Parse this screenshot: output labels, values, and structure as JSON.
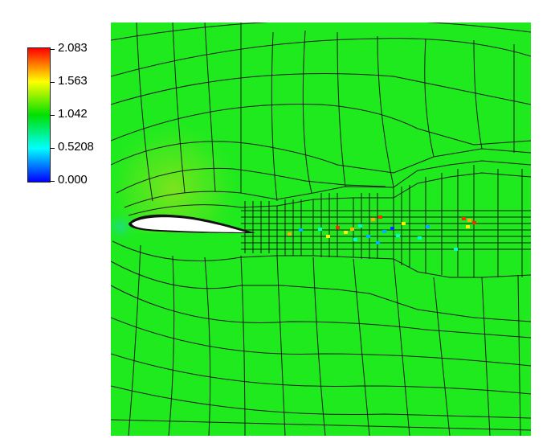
{
  "legend": {
    "ticks": [
      "2.083",
      "1.563",
      "1.042",
      "0.5208",
      "0.000"
    ],
    "colormap": [
      "#ff0000",
      "#ffff00",
      "#00e000",
      "#00ffff",
      "#0000ff"
    ]
  },
  "field": {
    "background": "#1eea1e",
    "mesh_color": "#1a1a1a",
    "airfoil_fill": "#ffffff",
    "wake_hotspots": [
      {
        "value": 2.05,
        "color": "#ff2a00"
      },
      {
        "value": 1.7,
        "color": "#ffb000"
      },
      {
        "value": 1.5,
        "color": "#ffee00"
      },
      {
        "value": 0.55,
        "color": "#00ffd0"
      },
      {
        "value": 0.3,
        "color": "#00b0ff"
      },
      {
        "value": 0.1,
        "color": "#0030ff"
      }
    ]
  }
}
